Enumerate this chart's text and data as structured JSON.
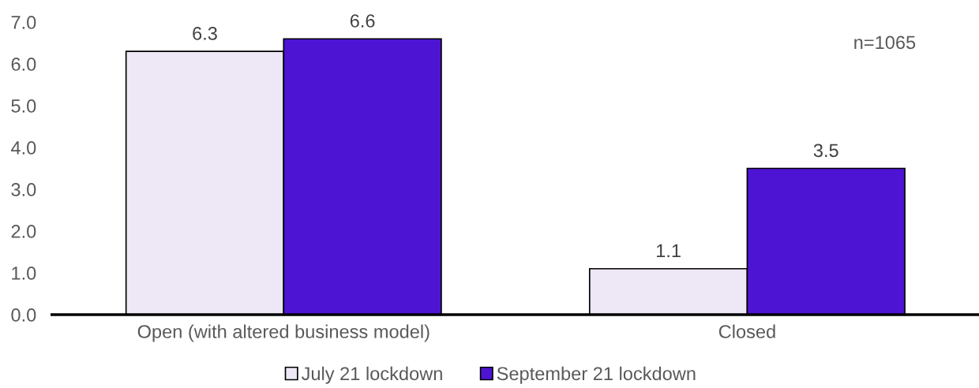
{
  "chart_data": {
    "type": "bar",
    "categories": [
      "Open (with altered business model)",
      "Closed"
    ],
    "series": [
      {
        "name": "July 21 lockdown",
        "color": "#ede7f6",
        "values": [
          6.3,
          1.1
        ]
      },
      {
        "name": "September 21 lockdown",
        "color": "#4e14d3",
        "values": [
          6.6,
          3.5
        ]
      }
    ],
    "ylim": [
      0,
      7
    ],
    "yticks": [
      {
        "value": 0,
        "label": "0.0"
      },
      {
        "value": 1,
        "label": "1.0"
      },
      {
        "value": 2,
        "label": "2.0"
      },
      {
        "value": 3,
        "label": "3.0"
      },
      {
        "value": 4,
        "label": "4.0"
      },
      {
        "value": 5,
        "label": "5.0"
      },
      {
        "value": 6,
        "label": "6.0"
      },
      {
        "value": 7,
        "label": "7.0"
      }
    ],
    "annotations": [
      "n=1065"
    ],
    "data_labels": true,
    "grid": false,
    "legend": "bottom"
  }
}
